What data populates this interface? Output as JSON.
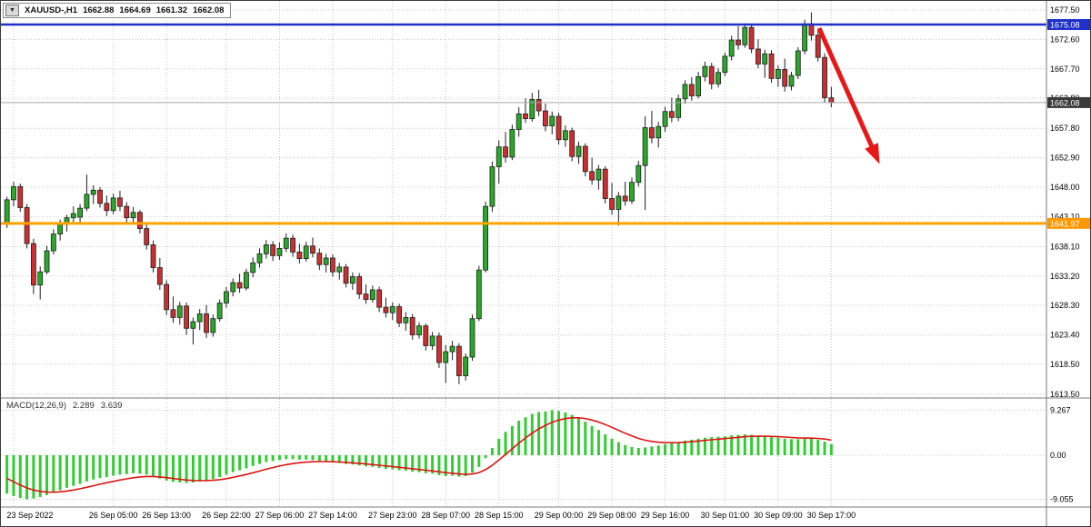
{
  "symbol_bar": {
    "menu_icon": "▼",
    "title": "XAUUSD-,H1",
    "open": "1662.88",
    "high": "1664.69",
    "low": "1661.32",
    "close": "1662.08"
  },
  "macd_panel": {
    "label": "MACD(12,26,9)",
    "main_value": "2.289",
    "signal_value": "3.639"
  },
  "colors": {
    "background": "#ffffff",
    "grid": "#c4c4c4",
    "separator": "#7a7a7a",
    "axis_text": "#000000",
    "bull": "#2aa82a",
    "bear": "#cc2f2f",
    "outline": "#1f1f1f",
    "wick": "#1f1f1f",
    "macd_bar": "#33cc33",
    "macd_signal": "#dd1414"
  },
  "chart_data": [
    {
      "type": "candlestick",
      "symbol": "XAUUSD-",
      "timeframe": "H1",
      "ohlc_readout": {
        "open": 1662.88,
        "high": 1664.69,
        "low": 1661.32,
        "close": 1662.08
      },
      "y_axis": {
        "side": "right",
        "min": 1613.5,
        "max": 1677.5,
        "labels": [
          "1677.50",
          "1672.60",
          "1667.70",
          "1662.80",
          "1657.80",
          "1652.90",
          "1648.00",
          "1643.10",
          "1638.10",
          "1633.20",
          "1628.30",
          "1623.40",
          "1618.50",
          "1613.50"
        ]
      },
      "x_axis": {
        "labels": [
          {
            "i": 1,
            "t": "23 Sep 2022"
          },
          {
            "i": 16,
            "t": "26 Sep 05:00"
          },
          {
            "i": 24,
            "t": "26 Sep 13:00"
          },
          {
            "i": 33,
            "t": "26 Sep 22:00"
          },
          {
            "i": 41,
            "t": "27 Sep 06:00"
          },
          {
            "i": 49,
            "t": "27 Sep 14:00"
          },
          {
            "i": 58,
            "t": "27 Sep 23:00"
          },
          {
            "i": 66,
            "t": "28 Sep 07:00"
          },
          {
            "i": 74,
            "t": "28 Sep 15:00"
          },
          {
            "i": 83,
            "t": "29 Sep 00:00"
          },
          {
            "i": 91,
            "t": "29 Sep 08:00"
          },
          {
            "i": 99,
            "t": "29 Sep 16:00"
          },
          {
            "i": 108,
            "t": "30 Sep 01:00"
          },
          {
            "i": 116,
            "t": "30 Sep 09:00"
          },
          {
            "i": 124,
            "t": "30 Sep 17:00"
          }
        ]
      },
      "price_markers": [
        {
          "name": "resistance-level",
          "label": "1675.08",
          "price": 1675.08,
          "line_color": "#2031c9",
          "line_width": 2.5,
          "box_color": "#2031c9"
        },
        {
          "name": "current-price",
          "label": "1662.08",
          "price": 1662.08,
          "line_color": "#a8a8a8",
          "line_width": 1,
          "box_color": "#3a3a3a"
        },
        {
          "name": "support-level",
          "label": "1641.97",
          "price": 1641.97,
          "line_color": "#ffa200",
          "line_width": 3,
          "box_color": "#ff9800"
        }
      ],
      "annotations": [
        {
          "type": "trend-arrow",
          "direction": "down-right",
          "color": "#e81717",
          "from": [
            900,
            30
          ],
          "to": [
            960,
            165
          ]
        }
      ],
      "candles": [
        [
          1641.8,
          1646.4,
          1641.2,
          1645.9
        ],
        [
          1645.9,
          1648.9,
          1644.8,
          1648.1
        ],
        [
          1648.1,
          1648.6,
          1643.9,
          1644.6
        ],
        [
          1644.6,
          1645.2,
          1637.8,
          1638.6
        ],
        [
          1638.6,
          1639.4,
          1630.2,
          1631.7
        ],
        [
          1631.7,
          1634.8,
          1629.3,
          1633.9
        ],
        [
          1633.9,
          1638.2,
          1633.5,
          1637.4
        ],
        [
          1637.4,
          1641.0,
          1636.8,
          1640.2
        ],
        [
          1640.2,
          1642.6,
          1639.1,
          1641.8
        ],
        [
          1641.8,
          1643.4,
          1640.6,
          1642.9
        ],
        [
          1642.9,
          1644.8,
          1641.9,
          1643.6
        ],
        [
          1643.0,
          1645.2,
          1641.8,
          1644.5
        ],
        [
          1644.5,
          1650.1,
          1644.0,
          1646.8
        ],
        [
          1646.8,
          1648.3,
          1645.2,
          1647.5
        ],
        [
          1647.5,
          1648.0,
          1644.6,
          1645.3
        ],
        [
          1645.3,
          1646.6,
          1643.2,
          1644.1
        ],
        [
          1644.1,
          1646.9,
          1643.5,
          1646.2
        ],
        [
          1646.2,
          1647.4,
          1644.0,
          1644.8
        ],
        [
          1644.8,
          1645.5,
          1642.1,
          1642.9
        ],
        [
          1642.9,
          1644.7,
          1642.0,
          1643.8
        ],
        [
          1643.8,
          1644.2,
          1640.3,
          1641.1
        ],
        [
          1641.1,
          1642.0,
          1637.6,
          1638.4
        ],
        [
          1638.4,
          1639.1,
          1633.8,
          1634.6
        ],
        [
          1634.6,
          1636.2,
          1630.9,
          1631.8
        ],
        [
          1631.8,
          1632.5,
          1626.7,
          1627.6
        ],
        [
          1627.6,
          1629.8,
          1625.4,
          1626.3
        ],
        [
          1626.3,
          1628.9,
          1625.1,
          1628.2
        ],
        [
          1628.2,
          1628.8,
          1623.4,
          1624.5
        ],
        [
          1624.5,
          1626.3,
          1621.8,
          1625.6
        ],
        [
          1625.6,
          1627.7,
          1624.2,
          1626.9
        ],
        [
          1626.9,
          1628.4,
          1622.9,
          1623.8
        ],
        [
          1623.8,
          1626.8,
          1623.1,
          1626.1
        ],
        [
          1626.1,
          1629.3,
          1625.6,
          1628.7
        ],
        [
          1628.7,
          1631.4,
          1627.9,
          1630.6
        ],
        [
          1630.6,
          1632.8,
          1629.8,
          1632.1
        ],
        [
          1632.1,
          1633.6,
          1630.4,
          1631.2
        ],
        [
          1631.2,
          1634.4,
          1630.8,
          1633.8
        ],
        [
          1633.8,
          1636.3,
          1633.0,
          1635.4
        ],
        [
          1635.4,
          1637.8,
          1634.6,
          1636.9
        ],
        [
          1636.9,
          1639.2,
          1636.1,
          1638.4
        ],
        [
          1638.4,
          1639.0,
          1635.7,
          1636.6
        ],
        [
          1636.6,
          1638.8,
          1635.9,
          1637.8
        ],
        [
          1637.8,
          1640.3,
          1637.2,
          1639.5
        ],
        [
          1639.5,
          1640.1,
          1636.4,
          1637.2
        ],
        [
          1637.2,
          1638.6,
          1635.3,
          1636.1
        ],
        [
          1636.1,
          1638.9,
          1635.6,
          1638.2
        ],
        [
          1638.2,
          1639.6,
          1636.3,
          1637.0
        ],
        [
          1637.0,
          1637.8,
          1634.2,
          1635.1
        ],
        [
          1635.1,
          1636.9,
          1633.8,
          1636.2
        ],
        [
          1636.2,
          1636.8,
          1633.1,
          1633.9
        ],
        [
          1633.9,
          1635.4,
          1632.6,
          1634.7
        ],
        [
          1634.7,
          1635.2,
          1631.3,
          1632.0
        ],
        [
          1632.0,
          1633.8,
          1630.9,
          1633.1
        ],
        [
          1633.1,
          1633.7,
          1629.4,
          1630.2
        ],
        [
          1630.2,
          1631.8,
          1628.6,
          1629.3
        ],
        [
          1629.3,
          1631.6,
          1628.8,
          1630.9
        ],
        [
          1630.9,
          1631.4,
          1627.2,
          1628.0
        ],
        [
          1628.0,
          1629.6,
          1626.3,
          1627.1
        ],
        [
          1627.1,
          1628.8,
          1625.9,
          1628.1
        ],
        [
          1628.1,
          1628.6,
          1624.7,
          1625.4
        ],
        [
          1625.4,
          1627.2,
          1624.1,
          1626.3
        ],
        [
          1626.3,
          1626.9,
          1622.6,
          1623.4
        ],
        [
          1623.4,
          1625.5,
          1622.8,
          1624.9
        ],
        [
          1624.9,
          1625.3,
          1620.8,
          1621.6
        ],
        [
          1621.6,
          1623.9,
          1620.9,
          1623.2
        ],
        [
          1623.2,
          1623.8,
          1617.9,
          1618.8
        ],
        [
          1618.8,
          1621.7,
          1615.4,
          1620.6
        ],
        [
          1620.6,
          1622.4,
          1619.2,
          1621.5
        ],
        [
          1621.5,
          1622.0,
          1615.2,
          1616.6
        ],
        [
          1616.6,
          1620.3,
          1615.8,
          1619.7
        ],
        [
          1619.7,
          1626.8,
          1619.1,
          1626.1
        ],
        [
          1626.1,
          1634.9,
          1625.7,
          1634.2
        ],
        [
          1634.2,
          1645.6,
          1633.8,
          1644.8
        ],
        [
          1644.8,
          1652.3,
          1643.9,
          1651.4
        ],
        [
          1651.4,
          1655.8,
          1648.6,
          1654.7
        ],
        [
          1654.7,
          1657.2,
          1652.1,
          1653.0
        ],
        [
          1653.0,
          1658.4,
          1652.5,
          1657.6
        ],
        [
          1657.6,
          1661.3,
          1656.4,
          1660.2
        ],
        [
          1660.2,
          1662.8,
          1658.7,
          1659.4
        ],
        [
          1659.4,
          1663.7,
          1658.9,
          1662.6
        ],
        [
          1662.6,
          1664.2,
          1659.8,
          1660.7
        ],
        [
          1660.7,
          1661.9,
          1657.3,
          1658.2
        ],
        [
          1658.2,
          1660.6,
          1656.8,
          1659.8
        ],
        [
          1659.8,
          1660.4,
          1655.1,
          1655.9
        ],
        [
          1655.9,
          1658.3,
          1654.7,
          1657.4
        ],
        [
          1657.4,
          1657.9,
          1652.3,
          1653.1
        ],
        [
          1653.1,
          1655.6,
          1651.9,
          1654.8
        ],
        [
          1654.8,
          1655.3,
          1649.8,
          1650.6
        ],
        [
          1650.6,
          1652.9,
          1648.4,
          1649.2
        ],
        [
          1649.2,
          1651.7,
          1647.6,
          1651.0
        ],
        [
          1651.0,
          1651.5,
          1645.3,
          1646.1
        ],
        [
          1646.1,
          1648.7,
          1643.4,
          1644.3
        ],
        [
          1644.3,
          1647.2,
          1641.6,
          1646.5
        ],
        [
          1646.5,
          1648.9,
          1644.9,
          1645.7
        ],
        [
          1645.7,
          1649.6,
          1645.2,
          1648.8
        ],
        [
          1648.8,
          1652.4,
          1648.1,
          1651.6
        ],
        [
          1651.6,
          1659.8,
          1644.2,
          1657.9
        ],
        [
          1657.9,
          1660.7,
          1655.3,
          1656.2
        ],
        [
          1656.2,
          1658.9,
          1654.6,
          1658.1
        ],
        [
          1658.1,
          1661.4,
          1657.2,
          1660.6
        ],
        [
          1660.6,
          1662.9,
          1658.8,
          1659.6
        ],
        [
          1659.6,
          1663.4,
          1659.0,
          1662.7
        ],
        [
          1662.7,
          1665.8,
          1661.9,
          1665.1
        ],
        [
          1665.1,
          1666.3,
          1662.4,
          1663.2
        ],
        [
          1663.2,
          1667.2,
          1662.8,
          1666.4
        ],
        [
          1666.4,
          1668.9,
          1665.6,
          1668.1
        ],
        [
          1668.1,
          1668.7,
          1664.3,
          1665.2
        ],
        [
          1665.2,
          1667.8,
          1664.6,
          1667.1
        ],
        [
          1667.1,
          1670.4,
          1666.5,
          1669.8
        ],
        [
          1669.8,
          1673.2,
          1669.1,
          1672.5
        ],
        [
          1672.5,
          1674.8,
          1670.9,
          1671.7
        ],
        [
          1671.7,
          1675.3,
          1671.2,
          1674.6
        ],
        [
          1674.6,
          1675.1,
          1670.3,
          1671.0
        ],
        [
          1671.0,
          1672.6,
          1667.8,
          1668.5
        ],
        [
          1668.5,
          1670.9,
          1666.2,
          1670.2
        ],
        [
          1670.2,
          1670.8,
          1665.4,
          1666.1
        ],
        [
          1666.1,
          1668.3,
          1664.7,
          1667.6
        ],
        [
          1667.6,
          1669.4,
          1663.9,
          1664.8
        ],
        [
          1664.8,
          1667.2,
          1664.1,
          1666.6
        ],
        [
          1666.6,
          1671.3,
          1666.0,
          1670.7
        ],
        [
          1670.7,
          1675.9,
          1670.1,
          1675.2
        ],
        [
          1675.2,
          1677.1,
          1672.4,
          1673.3
        ],
        [
          1673.3,
          1674.2,
          1668.9,
          1669.6
        ],
        [
          1669.6,
          1670.3,
          1662.1,
          1662.9
        ],
        [
          1662.88,
          1664.69,
          1661.32,
          1662.08
        ]
      ]
    },
    {
      "type": "bar",
      "title": "MACD(12,26,9)",
      "main_value": 2.289,
      "signal_value": 3.639,
      "signal_period": 9,
      "y_axis": {
        "side": "right",
        "max": 9.267,
        "min": -9.055,
        "labels": [
          "9.267",
          "0.00",
          "-9.055"
        ]
      },
      "histogram": [
        -7.9,
        -8.4,
        -8.8,
        -9.05,
        -8.9,
        -8.6,
        -8.2,
        -7.7,
        -7.2,
        -6.7,
        -6.3,
        -5.9,
        -5.4,
        -5.0,
        -4.7,
        -4.5,
        -4.2,
        -4.0,
        -3.9,
        -3.7,
        -3.8,
        -4.0,
        -4.4,
        -4.8,
        -5.2,
        -5.5,
        -5.6,
        -5.7,
        -5.6,
        -5.4,
        -5.2,
        -4.9,
        -4.5,
        -4.0,
        -3.5,
        -3.1,
        -2.7,
        -2.2,
        -1.8,
        -1.4,
        -1.2,
        -1.0,
        -0.8,
        -0.8,
        -0.9,
        -0.9,
        -1.0,
        -1.2,
        -1.3,
        -1.5,
        -1.6,
        -1.8,
        -1.9,
        -2.1,
        -2.3,
        -2.4,
        -2.6,
        -2.8,
        -2.9,
        -3.1,
        -3.2,
        -3.4,
        -3.5,
        -3.7,
        -3.8,
        -4.1,
        -4.3,
        -4.2,
        -4.4,
        -4.3,
        -3.6,
        -2.4,
        -0.6,
        1.5,
        3.4,
        4.8,
        6.0,
        7.1,
        7.8,
        8.5,
        8.9,
        9.0,
        9.27,
        9.1,
        8.8,
        8.3,
        7.7,
        6.9,
        6.0,
        5.2,
        4.3,
        3.4,
        2.7,
        2.1,
        1.7,
        1.5,
        1.6,
        1.8,
        2.0,
        2.3,
        2.5,
        2.7,
        3.0,
        3.2,
        3.4,
        3.6,
        3.7,
        3.8,
        3.9,
        4.1,
        4.2,
        4.3,
        4.2,
        4.0,
        3.9,
        3.7,
        3.6,
        3.4,
        3.3,
        3.3,
        3.4,
        3.4,
        3.2,
        2.8,
        2.289
      ]
    }
  ]
}
